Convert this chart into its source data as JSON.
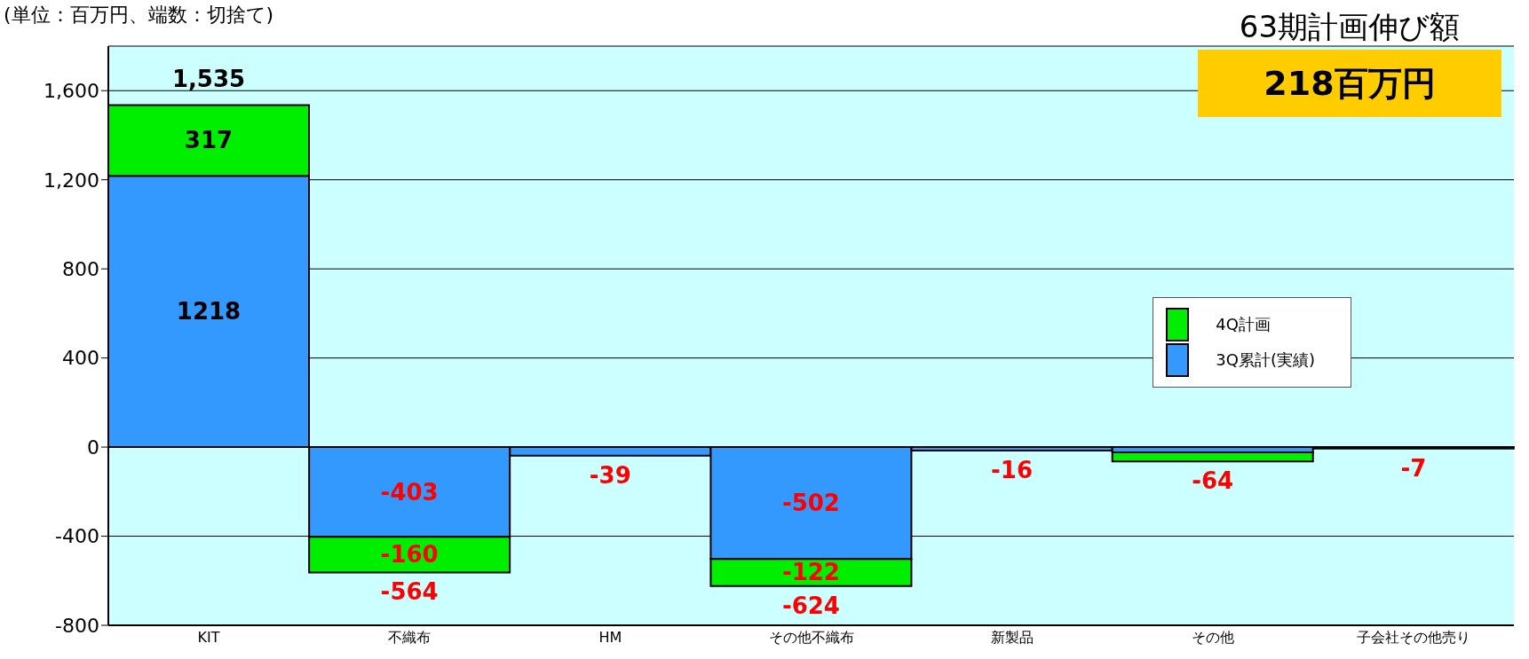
{
  "chart_data": {
    "type": "bar",
    "stacked": true,
    "categories": [
      "KIT",
      "不織布",
      "HM",
      "その他不織布",
      "新製品",
      "その他",
      "子会社その他売り"
    ],
    "series": [
      {
        "name": "3Q累計(実績)",
        "color": "#3399ff",
        "values": [
          1218,
          -403,
          -39,
          -502,
          -16,
          -24,
          -7
        ],
        "value_labels": [
          "1218",
          "-403",
          null,
          "-502",
          null,
          null,
          null
        ]
      },
      {
        "name": "4Q計画",
        "color": "#00ee00",
        "values": [
          317,
          -160,
          null,
          -122,
          null,
          -40,
          null
        ],
        "value_labels": [
          "317",
          "-160",
          null,
          "-122",
          null,
          null,
          null
        ]
      }
    ],
    "totals": [
      "1,535",
      "-564",
      "-39",
      "-624",
      "-16",
      "-64",
      "-7"
    ],
    "ylim": [
      -800,
      1800
    ],
    "yticks": [
      {
        "value": -800,
        "label": "-800"
      },
      {
        "value": -400,
        "label": "-400"
      },
      0,
      {
        "value": 400,
        "label": "400"
      },
      {
        "value": 800,
        "label": "800"
      },
      {
        "value": 1200,
        "label": "1,200"
      },
      {
        "value": 1600,
        "label": "1,600"
      }
    ],
    "grid": "y",
    "legend": "right",
    "annotations": [
      "(単位：百万円、端数：切捨て)",
      "63期計画伸び額",
      "218百万円"
    ]
  }
}
